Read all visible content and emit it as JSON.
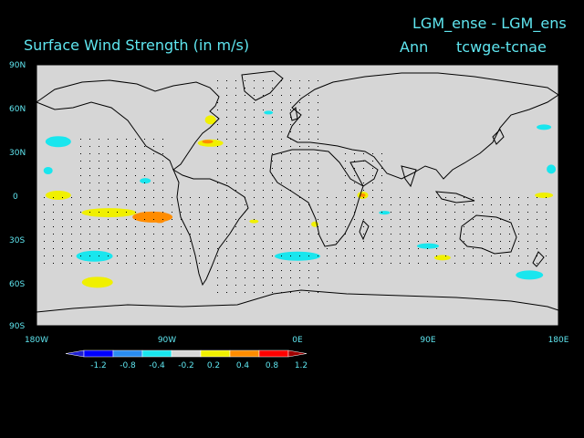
{
  "header": {
    "title": "Surface Wind Strength (in m/s)",
    "experiment_line": "LGM_ense - LGM_ens",
    "season": "Ann",
    "fields": "tcwge-tcnae"
  },
  "map": {
    "lat_labels": [
      "90N",
      "60N",
      "30N",
      "0",
      "30S",
      "60S",
      "90S"
    ],
    "lon_labels": [
      "180W",
      "90W",
      "0E",
      "90E",
      "180E"
    ],
    "background_color": "#d6d6d6"
  },
  "colorbar": {
    "labels": [
      "-1.2",
      "-0.8",
      "-0.4",
      "-0.2",
      "0.2",
      "0.4",
      "0.8",
      "1.2"
    ],
    "colors": [
      "#2020d0",
      "#0000ff",
      "#2a8cf0",
      "#19e6ee",
      "#d6d6d6",
      "#f0f000",
      "#ff8c00",
      "#ff0000",
      "#a00000"
    ]
  },
  "chart_data": {
    "type": "heatmap",
    "title": "Surface Wind Strength (in m/s)",
    "xlim": [
      -180,
      180
    ],
    "ylim": [
      -90,
      90
    ],
    "contour_levels": [
      -1.2,
      -0.8,
      -0.4,
      -0.2,
      0.2,
      0.4,
      0.8,
      1.2
    ],
    "regions": [
      {
        "lon": -165,
        "lat": 37,
        "level": -0.3
      },
      {
        "lon": -172,
        "lat": 17,
        "level": -0.3
      },
      {
        "lon": -165,
        "lat": 0,
        "level": 0.3
      },
      {
        "lon": -130,
        "lat": -12,
        "level": 0.3
      },
      {
        "lon": -100,
        "lat": -15,
        "level": 0.5
      },
      {
        "lon": -95,
        "lat": -16,
        "level": 0.8
      },
      {
        "lon": -140,
        "lat": -42,
        "level": -0.3
      },
      {
        "lon": -138,
        "lat": -60,
        "level": 0.3
      },
      {
        "lon": -105,
        "lat": 10,
        "level": -0.3
      },
      {
        "lon": -60,
        "lat": 36,
        "level": 0.3
      },
      {
        "lon": -62,
        "lat": 37,
        "level": 0.5
      },
      {
        "lon": -60,
        "lat": 52,
        "level": 0.3
      },
      {
        "lon": 0,
        "lat": -42,
        "level": -0.3
      },
      {
        "lon": 45,
        "lat": 0,
        "level": 0.3
      },
      {
        "lon": 45,
        "lat": 0,
        "level": 0.5
      },
      {
        "lon": 12,
        "lat": -20,
        "level": 0.3
      },
      {
        "lon": -30,
        "lat": -18,
        "level": 0.3
      },
      {
        "lon": 90,
        "lat": -35,
        "level": -0.3
      },
      {
        "lon": 100,
        "lat": -43,
        "level": 0.3
      },
      {
        "lon": 160,
        "lat": -55,
        "level": -0.3
      },
      {
        "lon": 170,
        "lat": 0,
        "level": 0.3
      },
      {
        "lon": 175,
        "lat": 18,
        "level": -0.3
      },
      {
        "lon": 170,
        "lat": 47,
        "level": -0.3
      },
      {
        "lon": 60,
        "lat": -12,
        "level": -0.3
      },
      {
        "lon": -20,
        "lat": 57,
        "level": -0.3
      }
    ]
  }
}
